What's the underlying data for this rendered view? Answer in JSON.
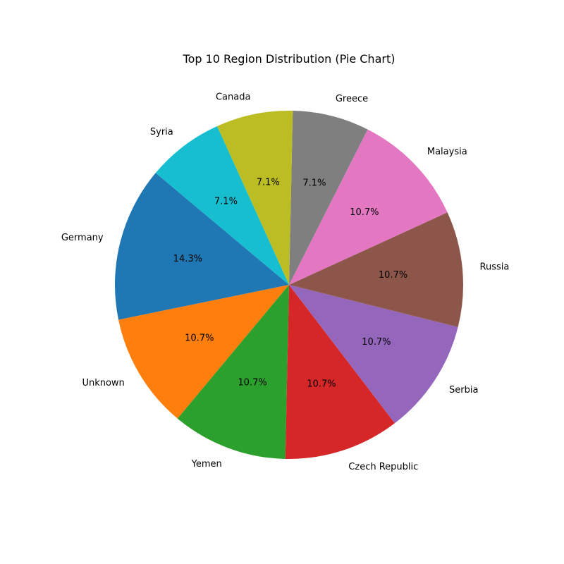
{
  "chart_data": {
    "type": "pie",
    "title": "Top 10 Region Distribution (Pie Chart)",
    "categories": [
      "Germany",
      "Unknown",
      "Yemen",
      "Czech Republic",
      "Serbia",
      "Russia",
      "Malaysia",
      "Greece",
      "Canada",
      "Syria"
    ],
    "values": [
      14.3,
      10.7,
      10.7,
      10.7,
      10.7,
      10.7,
      10.7,
      7.1,
      7.1,
      7.1
    ],
    "percent_labels": [
      "14.3%",
      "10.7%",
      "10.7%",
      "10.7%",
      "10.7%",
      "10.7%",
      "10.7%",
      "7.1%",
      "7.1%",
      "7.1%"
    ],
    "colors": [
      "#1f77b4",
      "#ff7f0e",
      "#2ca02c",
      "#d62728",
      "#9467bd",
      "#8c564b",
      "#e377c2",
      "#7f7f7f",
      "#bcbd22",
      "#17becf"
    ],
    "start_angle_deg": 140,
    "direction": "counterclockwise",
    "legend": "none"
  }
}
